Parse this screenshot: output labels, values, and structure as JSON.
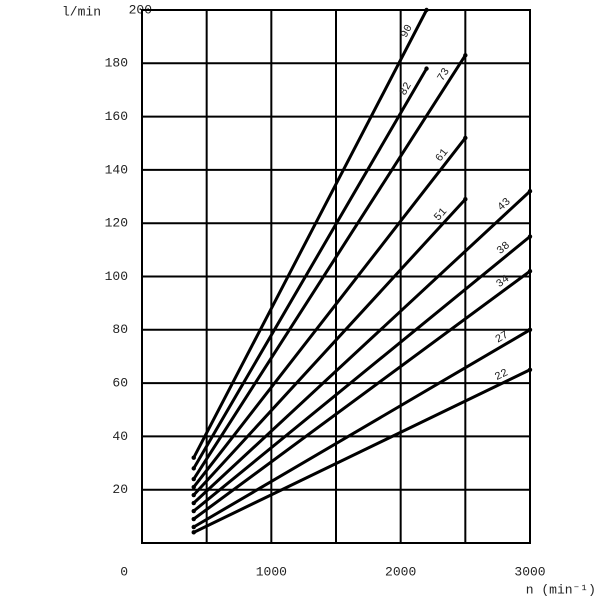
{
  "chart_data": {
    "type": "line",
    "xlabel": "n (min⁻¹)",
    "ylabel": "l/min",
    "xlim": [
      0,
      3000
    ],
    "ylim": [
      0,
      200
    ],
    "xticks": [
      0,
      1000,
      2000,
      3000
    ],
    "xminor": [
      500,
      1500,
      2500
    ],
    "yticks": [
      20,
      40,
      60,
      80,
      100,
      120,
      140,
      160,
      180,
      200
    ],
    "grid": true,
    "series": [
      {
        "name": "22",
        "color": "#000000",
        "x": [
          400,
          3000
        ],
        "values": [
          4,
          65
        ]
      },
      {
        "name": "27",
        "color": "#000000",
        "x": [
          400,
          3000
        ],
        "values": [
          6,
          80
        ]
      },
      {
        "name": "34",
        "color": "#000000",
        "x": [
          400,
          3000
        ],
        "values": [
          9,
          102
        ]
      },
      {
        "name": "38",
        "color": "#000000",
        "x": [
          400,
          3000
        ],
        "values": [
          12,
          115
        ]
      },
      {
        "name": "43",
        "color": "#000000",
        "x": [
          400,
          3000
        ],
        "values": [
          15,
          132
        ]
      },
      {
        "name": "51",
        "color": "#000000",
        "x": [
          400,
          2500
        ],
        "values": [
          18,
          129
        ]
      },
      {
        "name": "61",
        "color": "#000000",
        "x": [
          400,
          2500
        ],
        "values": [
          21,
          152
        ]
      },
      {
        "name": "73",
        "color": "#000000",
        "x": [
          400,
          2500
        ],
        "values": [
          24,
          183
        ]
      },
      {
        "name": "82",
        "color": "#000000",
        "x": [
          400,
          2200
        ],
        "values": [
          28,
          178
        ]
      },
      {
        "name": "90",
        "color": "#000000",
        "x": [
          400,
          2200
        ],
        "values": [
          32,
          200
        ]
      }
    ]
  }
}
